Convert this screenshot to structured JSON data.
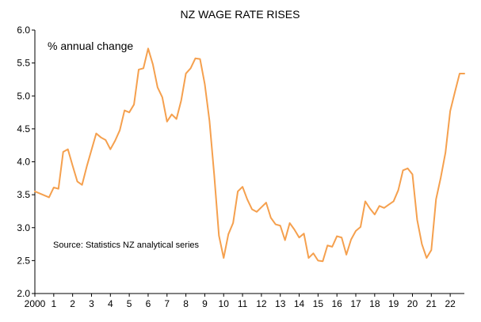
{
  "chart_data": {
    "type": "line",
    "title": "NZ WAGE RATE RISES",
    "unit_label": "% annual change",
    "source_note": "Source: Statistics NZ analytical series",
    "xlabel": "",
    "ylabel": "",
    "ylim": [
      2.0,
      6.0
    ],
    "yticks": [
      "2.0",
      "2.5",
      "3.0",
      "3.5",
      "4.0",
      "4.5",
      "5.0",
      "5.5",
      "6.0"
    ],
    "xlim": [
      2000.0,
      2022.75
    ],
    "xtick_labels": [
      "2000",
      "1",
      "2",
      "3",
      "4",
      "5",
      "6",
      "7",
      "8",
      "9",
      "10",
      "11",
      "12",
      "13",
      "14",
      "15",
      "16",
      "17",
      "18",
      "19",
      "20",
      "21",
      "22"
    ],
    "grid": false,
    "line_color": "#F5A04E",
    "series": [
      {
        "x": [
          2000.0,
          2000.25,
          2000.5,
          2000.75,
          2001.0,
          2001.25,
          2001.5,
          2001.75,
          2002.0,
          2002.25,
          2002.5,
          2002.75,
          2003.0,
          2003.25,
          2003.5,
          2003.75,
          2004.0,
          2004.25,
          2004.5,
          2004.75,
          2005.0,
          2005.25,
          2005.5,
          2005.75,
          2006.0,
          2006.25,
          2006.5,
          2006.75,
          2007.0,
          2007.25,
          2007.5,
          2007.75,
          2008.0,
          2008.25,
          2008.5,
          2008.75,
          2009.0,
          2009.25,
          2009.5,
          2009.75,
          2010.0,
          2010.25,
          2010.5,
          2010.75,
          2011.0,
          2011.25,
          2011.5,
          2011.75,
          2012.0,
          2012.25,
          2012.5,
          2012.75,
          2013.0,
          2013.25,
          2013.5,
          2013.75,
          2014.0,
          2014.25,
          2014.5,
          2014.75,
          2015.0,
          2015.25,
          2015.5,
          2015.75,
          2016.0,
          2016.25,
          2016.5,
          2016.75,
          2017.0,
          2017.25,
          2017.5,
          2017.75,
          2018.0,
          2018.25,
          2018.5,
          2018.75,
          2019.0,
          2019.25,
          2019.5,
          2019.75,
          2020.0,
          2020.25,
          2020.5,
          2020.75,
          2021.0,
          2021.25,
          2021.5,
          2021.75,
          2022.0,
          2022.25,
          2022.5,
          2022.75
        ],
        "values": [
          3.55,
          3.52,
          3.49,
          3.46,
          3.61,
          3.59,
          4.15,
          4.19,
          3.94,
          3.7,
          3.65,
          3.93,
          4.18,
          4.43,
          4.37,
          4.33,
          4.19,
          4.32,
          4.48,
          4.78,
          4.75,
          4.87,
          5.4,
          5.42,
          5.72,
          5.48,
          5.13,
          4.98,
          4.61,
          4.72,
          4.65,
          4.93,
          5.34,
          5.42,
          5.57,
          5.56,
          5.18,
          4.62,
          3.8,
          2.88,
          2.54,
          2.9,
          3.07,
          3.55,
          3.62,
          3.43,
          3.28,
          3.24,
          3.31,
          3.38,
          3.15,
          3.05,
          3.03,
          2.81,
          3.07,
          2.97,
          2.85,
          2.91,
          2.54,
          2.61,
          2.5,
          2.49,
          2.73,
          2.71,
          2.87,
          2.85,
          2.59,
          2.82,
          2.95,
          3.01,
          3.4,
          3.29,
          3.2,
          3.33,
          3.3,
          3.35,
          3.4,
          3.57,
          3.87,
          3.9,
          3.81,
          3.12,
          2.75,
          2.54,
          2.66,
          3.43,
          3.76,
          4.14,
          4.77,
          5.06,
          5.34,
          5.34
        ]
      }
    ]
  }
}
